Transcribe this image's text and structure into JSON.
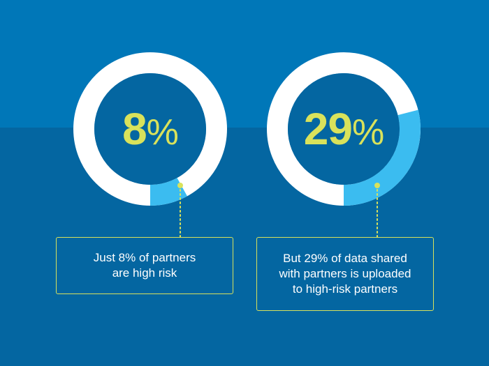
{
  "colors": {
    "bg_top": "#0077b8",
    "bg_bottom": "#0466a1",
    "ring": "#ffffff",
    "segment": "#3bbcf0",
    "inner": "#0466a1",
    "accent": "#d9e25b"
  },
  "chart_data": [
    {
      "type": "pie",
      "style": "donut",
      "value": 8,
      "unit": "%",
      "center_number": "8",
      "center_symbol": "%",
      "caption": [
        "Just 8% of partners",
        "are high risk"
      ]
    },
    {
      "type": "pie",
      "style": "donut",
      "value": 29,
      "unit": "%",
      "center_number": "29",
      "center_symbol": "%",
      "caption": [
        "But 29% of data shared",
        "with partners is uploaded",
        "to high-risk partners"
      ]
    }
  ]
}
